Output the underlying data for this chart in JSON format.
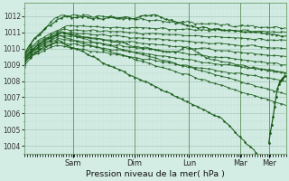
{
  "bg_color": "#d4ede4",
  "grid_color_minor": "#c0ddd4",
  "grid_color_major": "#a8c8bc",
  "line_color": "#1a5c1a",
  "marker_color": "#1a5c1a",
  "xlabel_text": "Pression niveau de la mer( hPa )",
  "ylim": [
    1003.5,
    1012.8
  ],
  "yticks": [
    1004,
    1005,
    1006,
    1007,
    1008,
    1009,
    1010,
    1011,
    1012
  ],
  "day_labels": [
    "Sam",
    "Dim",
    "Lun",
    "Mar",
    "Mer"
  ],
  "day_positions": [
    0.185,
    0.42,
    0.63,
    0.825,
    0.935
  ],
  "xlim": [
    0,
    1
  ]
}
